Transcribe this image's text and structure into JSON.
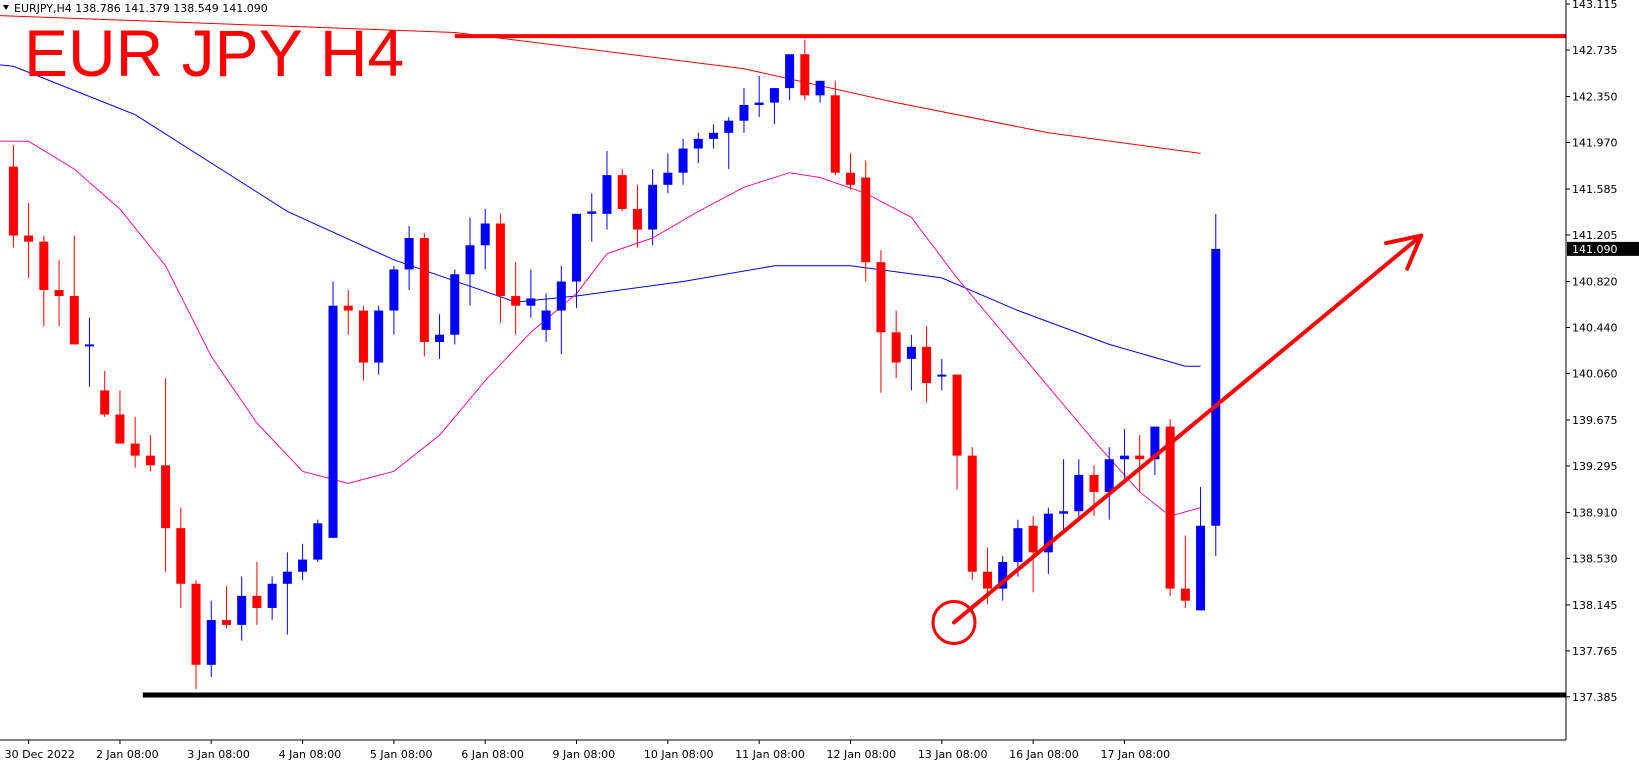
{
  "symbol_info": "EURJPY,H4  138.786 141.379 138.549 141.090",
  "chart_data": {
    "type": "candlestick",
    "title": "EUR JPY H4",
    "ylim": [
      137.2,
      143.2
    ],
    "y_ticks": [
      "143.115",
      "142.735",
      "142.350",
      "141.970",
      "141.585",
      "141.205",
      "140.820",
      "140.440",
      "140.060",
      "139.675",
      "139.295",
      "138.910",
      "138.530",
      "138.145",
      "137.765",
      "137.385"
    ],
    "current_price": "141.090",
    "x_ticks": [
      {
        "label": "30 Dec 2022",
        "bar": 1
      },
      {
        "label": "2 Jan 08:00",
        "bar": 7
      },
      {
        "label": "3 Jan 08:00",
        "bar": 13
      },
      {
        "label": "4 Jan 08:00",
        "bar": 19
      },
      {
        "label": "5 Jan 08:00",
        "bar": 25
      },
      {
        "label": "6 Jan 08:00",
        "bar": 31
      },
      {
        "label": "9 Jan 08:00",
        "bar": 37
      },
      {
        "label": "10 Jan 08:00",
        "bar": 43
      },
      {
        "label": "11 Jan 08:00",
        "bar": 49
      },
      {
        "label": "12 Jan 08:00",
        "bar": 55
      },
      {
        "label": "13 Jan 08:00",
        "bar": 61
      },
      {
        "label": "16 Jan 08:00",
        "bar": 67
      },
      {
        "label": "17 Jan 08:00",
        "bar": 73
      }
    ],
    "ohlc": [
      [
        141.77,
        141.95,
        141.1,
        141.2
      ],
      [
        141.2,
        141.47,
        140.85,
        141.15
      ],
      [
        141.15,
        141.2,
        140.45,
        140.75
      ],
      [
        140.75,
        141.0,
        140.45,
        140.7
      ],
      [
        140.7,
        141.2,
        140.3,
        140.3
      ],
      [
        140.3,
        140.52,
        139.95,
        140.3
      ],
      [
        139.92,
        140.08,
        139.7,
        139.72
      ],
      [
        139.72,
        139.92,
        139.48,
        139.48
      ],
      [
        139.48,
        139.7,
        139.28,
        139.38
      ],
      [
        139.38,
        139.55,
        139.25,
        139.3
      ],
      [
        139.3,
        140.02,
        138.42,
        138.78
      ],
      [
        138.78,
        138.95,
        138.12,
        138.32
      ],
      [
        138.32,
        138.35,
        137.45,
        137.65
      ],
      [
        137.65,
        138.18,
        137.55,
        138.02
      ],
      [
        138.02,
        138.3,
        137.95,
        137.98
      ],
      [
        137.98,
        138.38,
        137.85,
        138.22
      ],
      [
        138.22,
        138.5,
        137.98,
        138.12
      ],
      [
        138.12,
        138.38,
        138.02,
        138.32
      ],
      [
        138.32,
        138.58,
        137.9,
        138.42
      ],
      [
        138.42,
        138.65,
        138.35,
        138.52
      ],
      [
        138.52,
        138.85,
        138.5,
        138.82
      ],
      [
        138.7,
        140.82,
        138.7,
        140.62
      ],
      [
        140.62,
        140.75,
        140.38,
        140.58
      ],
      [
        140.58,
        140.62,
        140.0,
        140.15
      ],
      [
        140.15,
        140.62,
        140.05,
        140.58
      ],
      [
        140.58,
        140.95,
        140.38,
        140.92
      ],
      [
        140.92,
        141.28,
        140.75,
        141.18
      ],
      [
        141.18,
        141.22,
        140.2,
        140.32
      ],
      [
        140.32,
        140.55,
        140.18,
        140.38
      ],
      [
        140.38,
        140.92,
        140.3,
        140.88
      ],
      [
        140.88,
        141.35,
        140.62,
        141.12
      ],
      [
        141.12,
        141.42,
        140.92,
        141.3
      ],
      [
        141.3,
        141.38,
        140.48,
        140.7
      ],
      [
        140.7,
        140.98,
        140.38,
        140.62
      ],
      [
        140.62,
        140.92,
        140.52,
        140.68
      ],
      [
        140.42,
        140.72,
        140.32,
        140.58
      ],
      [
        140.58,
        140.95,
        140.22,
        140.82
      ],
      [
        140.82,
        141.35,
        140.6,
        141.38
      ],
      [
        141.38,
        141.55,
        141.15,
        141.4
      ],
      [
        141.38,
        141.9,
        141.25,
        141.7
      ],
      [
        141.7,
        141.75,
        141.4,
        141.42
      ],
      [
        141.42,
        141.62,
        141.1,
        141.25
      ],
      [
        141.25,
        141.75,
        141.12,
        141.62
      ],
      [
        141.62,
        141.88,
        141.55,
        141.72
      ],
      [
        141.72,
        142.0,
        141.62,
        141.92
      ],
      [
        141.92,
        142.05,
        141.8,
        142.0
      ],
      [
        142.0,
        142.12,
        141.92,
        142.05
      ],
      [
        142.05,
        142.18,
        141.75,
        142.15
      ],
      [
        142.15,
        142.42,
        142.05,
        142.28
      ],
      [
        142.28,
        142.52,
        142.18,
        142.3
      ],
      [
        142.3,
        142.42,
        142.12,
        142.42
      ],
      [
        142.42,
        142.7,
        142.32,
        142.7
      ],
      [
        142.7,
        142.82,
        142.32,
        142.36
      ],
      [
        142.36,
        142.48,
        142.3,
        142.48
      ],
      [
        142.36,
        142.48,
        141.7,
        141.72
      ],
      [
        141.72,
        141.88,
        141.58,
        141.62
      ],
      [
        141.68,
        141.82,
        140.82,
        140.98
      ],
      [
        140.98,
        141.08,
        139.9,
        140.4
      ],
      [
        140.4,
        140.58,
        140.02,
        140.15
      ],
      [
        140.18,
        140.38,
        139.92,
        140.28
      ],
      [
        140.28,
        140.45,
        139.82,
        139.98
      ],
      [
        140.05,
        140.18,
        139.92,
        140.05
      ],
      [
        140.05,
        140.05,
        139.1,
        139.38
      ],
      [
        139.38,
        139.45,
        138.35,
        138.42
      ],
      [
        138.42,
        138.62,
        138.15,
        138.28
      ],
      [
        138.28,
        138.55,
        138.18,
        138.5
      ],
      [
        138.5,
        138.85,
        138.38,
        138.78
      ],
      [
        138.8,
        138.88,
        138.25,
        138.58
      ],
      [
        138.58,
        138.95,
        138.4,
        138.9
      ],
      [
        138.9,
        139.35,
        138.75,
        138.92
      ],
      [
        138.92,
        139.35,
        138.85,
        139.22
      ],
      [
        139.22,
        139.3,
        138.88,
        139.08
      ],
      [
        139.08,
        139.45,
        138.85,
        139.35
      ],
      [
        139.35,
        139.6,
        139.18,
        139.38
      ],
      [
        139.38,
        139.55,
        139.08,
        139.35
      ],
      [
        139.35,
        139.62,
        139.22,
        139.62
      ],
      [
        139.62,
        139.68,
        138.22,
        138.28
      ],
      [
        138.28,
        138.72,
        138.12,
        138.18
      ],
      [
        138.1,
        139.12,
        138.1,
        138.8
      ],
      [
        138.8,
        141.38,
        138.55,
        141.09
      ]
    ],
    "moving_averages": [
      {
        "color": "#ff0000",
        "points": [
          [
            -18,
            143.1
          ],
          [
            29,
            142.88
          ],
          [
            48,
            142.58
          ],
          [
            58,
            142.3
          ],
          [
            68,
            142.05
          ],
          [
            78,
            141.88
          ]
        ]
      },
      {
        "color": "#0000ff",
        "points": [
          [
            -18,
            142.85
          ],
          [
            0,
            142.6
          ],
          [
            8,
            142.2
          ],
          [
            18,
            141.4
          ],
          [
            25,
            141.0
          ],
          [
            33,
            140.65
          ],
          [
            37,
            140.7
          ],
          [
            44,
            140.82
          ],
          [
            50,
            140.95
          ],
          [
            55,
            140.95
          ],
          [
            61,
            140.85
          ],
          [
            66,
            140.58
          ],
          [
            72,
            140.3
          ],
          [
            77,
            140.12
          ],
          [
            78,
            140.12
          ]
        ]
      },
      {
        "color": "#ff1493",
        "points": [
          [
            -18,
            142.0
          ],
          [
            1,
            141.98
          ],
          [
            4,
            141.75
          ],
          [
            7,
            141.42
          ],
          [
            10,
            140.95
          ],
          [
            13,
            140.2
          ],
          [
            16,
            139.65
          ],
          [
            19,
            139.25
          ],
          [
            22,
            139.15
          ],
          [
            25,
            139.25
          ],
          [
            28,
            139.55
          ],
          [
            31,
            140.0
          ],
          [
            34,
            140.4
          ],
          [
            37,
            140.72
          ],
          [
            39,
            141.05
          ],
          [
            42,
            141.18
          ],
          [
            45,
            141.4
          ],
          [
            48,
            141.6
          ],
          [
            51,
            141.72
          ],
          [
            53,
            141.68
          ],
          [
            56,
            141.55
          ],
          [
            59,
            141.35
          ],
          [
            62,
            140.85
          ],
          [
            65,
            140.4
          ],
          [
            68,
            139.95
          ],
          [
            71,
            139.5
          ],
          [
            74,
            139.08
          ],
          [
            76,
            138.88
          ],
          [
            78,
            138.95
          ]
        ]
      }
    ],
    "annotations": {
      "resistance_y": 142.85,
      "resistance_start_bar": 29,
      "support_y": 137.4,
      "support_start_bar": 8.5,
      "circle": {
        "bar": 61.8,
        "y": 138.0
      },
      "trend_arrow": {
        "from": [
          61.8,
          138.0
        ],
        "to": [
          92.5,
          141.2
        ]
      }
    }
  }
}
